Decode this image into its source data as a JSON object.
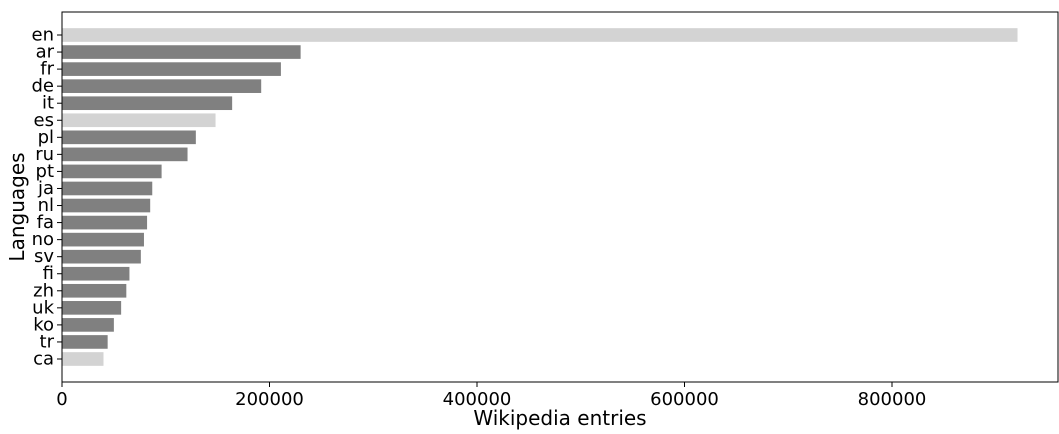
{
  "chart_data": {
    "type": "bar",
    "orientation": "horizontal",
    "xlabel": "Wikipedia entries",
    "ylabel": "Languages",
    "xlim": [
      0,
      960000
    ],
    "xticks": [
      0,
      200000,
      400000,
      600000,
      800000
    ],
    "xtick_labels": [
      "0",
      "200000",
      "400000",
      "600000",
      "800000"
    ],
    "grid": false,
    "categories": [
      "en",
      "ar",
      "fr",
      "de",
      "it",
      "es",
      "pl",
      "ru",
      "pt",
      "ja",
      "nl",
      "fa",
      "no",
      "sv",
      "fi",
      "zh",
      "uk",
      "ko",
      "tr",
      "ca"
    ],
    "values": [
      921000,
      230000,
      211000,
      192000,
      164000,
      148000,
      129000,
      121000,
      96000,
      87000,
      85000,
      82000,
      79000,
      76000,
      65000,
      62000,
      57000,
      50000,
      44000,
      40000
    ],
    "bar_colors": [
      "#d3d3d3",
      "#808080",
      "#808080",
      "#808080",
      "#808080",
      "#d3d3d3",
      "#808080",
      "#808080",
      "#808080",
      "#808080",
      "#808080",
      "#808080",
      "#808080",
      "#808080",
      "#808080",
      "#808080",
      "#808080",
      "#808080",
      "#808080",
      "#d3d3d3"
    ]
  }
}
